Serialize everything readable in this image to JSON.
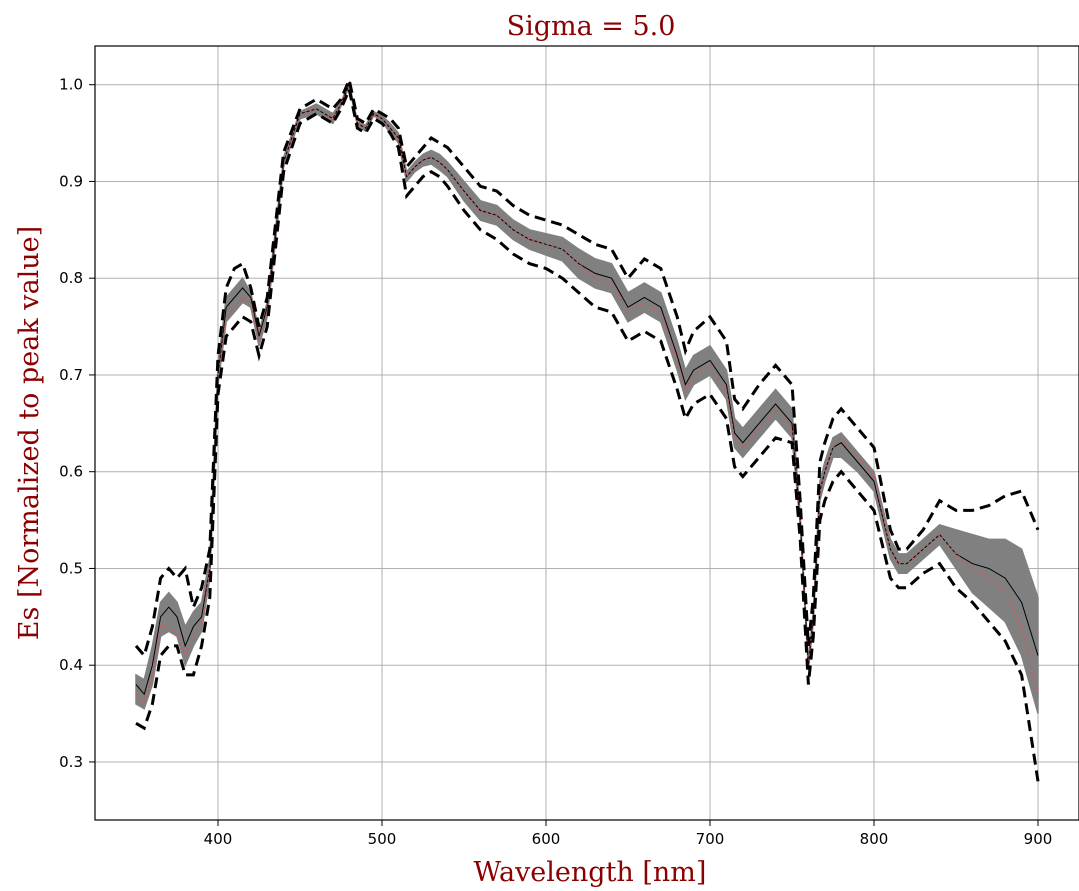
{
  "chart_data": {
    "type": "line",
    "title": "Sigma = 5.0",
    "xlabel": "Wavelength [nm]",
    "ylabel": "Es [Normalized to peak value]",
    "xlim": [
      325,
      925
    ],
    "ylim": [
      0.24,
      1.04
    ],
    "xticks": [
      400,
      500,
      600,
      700,
      800,
      900
    ],
    "yticks": [
      0.3,
      0.4,
      0.5,
      0.6,
      0.7,
      0.8,
      0.9,
      1.0
    ],
    "xtick_labels": [
      "400",
      "500",
      "600",
      "700",
      "800",
      "900"
    ],
    "ytick_labels": [
      "0.3",
      "0.4",
      "0.5",
      "0.6",
      "0.7",
      "0.8",
      "0.9",
      "1.0"
    ],
    "grid": true,
    "legend": "none",
    "x": [
      350,
      355,
      360,
      365,
      370,
      375,
      380,
      385,
      390,
      395,
      400,
      405,
      410,
      415,
      420,
      425,
      430,
      440,
      450,
      460,
      470,
      475,
      480,
      485,
      490,
      495,
      500,
      505,
      510,
      515,
      520,
      525,
      530,
      535,
      540,
      550,
      560,
      570,
      580,
      590,
      600,
      610,
      620,
      630,
      640,
      650,
      660,
      670,
      680,
      685,
      690,
      700,
      710,
      715,
      720,
      730,
      740,
      750,
      755,
      760,
      763,
      767,
      770,
      775,
      780,
      790,
      800,
      810,
      815,
      820,
      830,
      840,
      850,
      860,
      870,
      880,
      890,
      900
    ],
    "series": [
      {
        "name": "",
        "role": "mean",
        "color": "#000000",
        "style": "solid",
        "values": [
          0.38,
          0.37,
          0.4,
          0.45,
          0.46,
          0.45,
          0.42,
          0.44,
          0.45,
          0.5,
          0.7,
          0.77,
          0.78,
          0.79,
          0.78,
          0.74,
          0.77,
          0.92,
          0.97,
          0.975,
          0.965,
          0.98,
          1.0,
          0.96,
          0.955,
          0.97,
          0.965,
          0.955,
          0.945,
          0.905,
          0.915,
          0.922,
          0.925,
          0.92,
          0.912,
          0.89,
          0.87,
          0.865,
          0.85,
          0.84,
          0.835,
          0.83,
          0.815,
          0.805,
          0.8,
          0.77,
          0.78,
          0.77,
          0.72,
          0.69,
          0.705,
          0.715,
          0.69,
          0.64,
          0.63,
          0.65,
          0.67,
          0.65,
          0.55,
          0.4,
          0.45,
          0.58,
          0.6,
          0.625,
          0.63,
          0.61,
          0.59,
          0.52,
          0.505,
          0.505,
          0.52,
          0.535,
          0.515,
          0.505,
          0.5,
          0.49,
          0.465,
          0.41
        ]
      },
      {
        "name": "",
        "role": "median",
        "color": "#e05050",
        "style": "dotted",
        "values": [
          0.37,
          0.36,
          0.39,
          0.44,
          0.44,
          0.43,
          0.41,
          0.43,
          0.44,
          0.5,
          0.7,
          0.76,
          0.77,
          0.78,
          0.775,
          0.735,
          0.765,
          0.92,
          0.97,
          0.975,
          0.965,
          0.98,
          1.0,
          0.96,
          0.955,
          0.97,
          0.965,
          0.955,
          0.945,
          0.905,
          0.915,
          0.922,
          0.925,
          0.92,
          0.912,
          0.89,
          0.87,
          0.865,
          0.85,
          0.84,
          0.835,
          0.83,
          0.815,
          0.8,
          0.795,
          0.765,
          0.775,
          0.765,
          0.715,
          0.685,
          0.7,
          0.71,
          0.685,
          0.635,
          0.625,
          0.645,
          0.665,
          0.645,
          0.55,
          0.4,
          0.45,
          0.58,
          0.6,
          0.625,
          0.635,
          0.615,
          0.595,
          0.52,
          0.505,
          0.505,
          0.52,
          0.535,
          0.515,
          0.5,
          0.49,
          0.475,
          0.44,
          0.37
        ]
      },
      {
        "name": "",
        "role": "upper",
        "color": "#000000",
        "style": "dashed",
        "values": [
          0.42,
          0.41,
          0.44,
          0.49,
          0.5,
          0.49,
          0.5,
          0.46,
          0.48,
          0.52,
          0.72,
          0.79,
          0.81,
          0.815,
          0.79,
          0.75,
          0.78,
          0.93,
          0.975,
          0.985,
          0.975,
          0.985,
          1.005,
          0.965,
          0.96,
          0.975,
          0.97,
          0.965,
          0.955,
          0.915,
          0.925,
          0.935,
          0.945,
          0.94,
          0.935,
          0.915,
          0.895,
          0.89,
          0.875,
          0.865,
          0.86,
          0.855,
          0.845,
          0.835,
          0.83,
          0.8,
          0.82,
          0.81,
          0.76,
          0.725,
          0.745,
          0.76,
          0.735,
          0.675,
          0.665,
          0.69,
          0.71,
          0.69,
          0.57,
          0.42,
          0.47,
          0.61,
          0.63,
          0.655,
          0.665,
          0.645,
          0.625,
          0.54,
          0.52,
          0.52,
          0.54,
          0.57,
          0.56,
          0.56,
          0.565,
          0.575,
          0.58,
          0.54
        ]
      },
      {
        "name": "",
        "role": "lower",
        "color": "#000000",
        "style": "dashed",
        "values": [
          0.34,
          0.335,
          0.36,
          0.41,
          0.42,
          0.42,
          0.39,
          0.39,
          0.42,
          0.47,
          0.68,
          0.74,
          0.75,
          0.76,
          0.755,
          0.72,
          0.75,
          0.91,
          0.96,
          0.97,
          0.96,
          0.975,
          0.995,
          0.955,
          0.95,
          0.965,
          0.96,
          0.95,
          0.935,
          0.885,
          0.895,
          0.905,
          0.91,
          0.905,
          0.895,
          0.87,
          0.85,
          0.84,
          0.825,
          0.815,
          0.81,
          0.8,
          0.785,
          0.77,
          0.765,
          0.735,
          0.745,
          0.735,
          0.685,
          0.655,
          0.67,
          0.68,
          0.655,
          0.605,
          0.595,
          0.615,
          0.635,
          0.63,
          0.53,
          0.38,
          0.43,
          0.55,
          0.57,
          0.59,
          0.6,
          0.58,
          0.56,
          0.49,
          0.48,
          0.48,
          0.495,
          0.505,
          0.48,
          0.465,
          0.445,
          0.425,
          0.39,
          0.28
        ]
      }
    ],
    "band": {
      "color": "#808080",
      "upper": [
        0.39,
        0.385,
        0.42,
        0.465,
        0.475,
        0.465,
        0.44,
        0.455,
        0.465,
        0.51,
        0.71,
        0.78,
        0.79,
        0.8,
        0.785,
        0.745,
        0.775,
        0.925,
        0.972,
        0.98,
        0.97,
        0.982,
        1.002,
        0.962,
        0.958,
        0.972,
        0.968,
        0.96,
        0.95,
        0.91,
        0.92,
        0.928,
        0.932,
        0.928,
        0.92,
        0.9,
        0.88,
        0.875,
        0.86,
        0.85,
        0.846,
        0.842,
        0.83,
        0.82,
        0.815,
        0.785,
        0.795,
        0.785,
        0.735,
        0.705,
        0.72,
        0.73,
        0.705,
        0.655,
        0.645,
        0.665,
        0.685,
        0.665,
        0.555,
        0.405,
        0.455,
        0.59,
        0.61,
        0.635,
        0.64,
        0.62,
        0.6,
        0.53,
        0.515,
        0.515,
        0.53,
        0.545,
        0.54,
        0.535,
        0.53,
        0.53,
        0.52,
        0.47
      ],
      "lower": [
        0.36,
        0.355,
        0.38,
        0.43,
        0.435,
        0.43,
        0.4,
        0.42,
        0.435,
        0.49,
        0.69,
        0.755,
        0.765,
        0.775,
        0.77,
        0.73,
        0.76,
        0.915,
        0.965,
        0.97,
        0.96,
        0.978,
        0.998,
        0.958,
        0.952,
        0.968,
        0.962,
        0.95,
        0.94,
        0.9,
        0.91,
        0.916,
        0.918,
        0.912,
        0.905,
        0.88,
        0.86,
        0.855,
        0.84,
        0.83,
        0.824,
        0.818,
        0.8,
        0.79,
        0.785,
        0.755,
        0.765,
        0.755,
        0.705,
        0.675,
        0.69,
        0.7,
        0.675,
        0.625,
        0.615,
        0.635,
        0.655,
        0.635,
        0.545,
        0.395,
        0.445,
        0.57,
        0.59,
        0.615,
        0.615,
        0.6,
        0.58,
        0.51,
        0.495,
        0.495,
        0.51,
        0.525,
        0.5,
        0.475,
        0.46,
        0.445,
        0.41,
        0.35
      ]
    }
  }
}
